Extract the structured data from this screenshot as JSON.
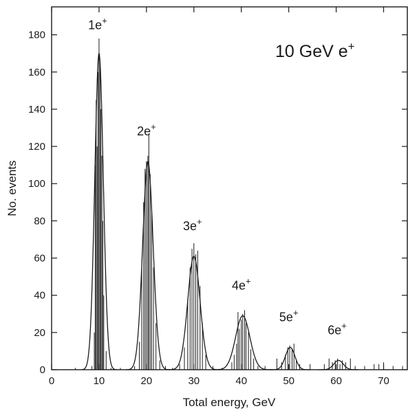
{
  "chart_data": {
    "type": "histogram",
    "title": "10 GeV e⁺",
    "title_parts": {
      "text": "10 GeV e",
      "sup": "+"
    },
    "xlabel": "Total energy, GeV",
    "ylabel": "No. events",
    "xlim": [
      0,
      75
    ],
    "ylim": [
      0,
      195
    ],
    "xticks": [
      0,
      10,
      20,
      30,
      40,
      50,
      60,
      70
    ],
    "yticks": [
      0,
      20,
      40,
      60,
      80,
      100,
      120,
      140,
      160,
      180
    ],
    "grid": false,
    "colors": {
      "ink": "#1a1a1a",
      "background": "#ffffff"
    },
    "peaks": [
      {
        "label": "1e",
        "sup": "+",
        "center": 10,
        "sigma": 0.9,
        "height": 170
      },
      {
        "label": "2e",
        "sup": "+",
        "center": 20.3,
        "sigma": 1.1,
        "height": 112
      },
      {
        "label": "3e",
        "sup": "+",
        "center": 30,
        "sigma": 1.3,
        "height": 61
      },
      {
        "label": "4e",
        "sup": "+",
        "center": 40.3,
        "sigma": 1.5,
        "height": 29
      },
      {
        "label": "5e",
        "sup": "+",
        "center": 50.3,
        "sigma": 1.0,
        "height": 12
      },
      {
        "label": "6e",
        "sup": "+",
        "center": 60.5,
        "sigma": 1.0,
        "height": 5
      }
    ],
    "histogram": [
      {
        "x": 5.0,
        "y": 1
      },
      {
        "x": 8.5,
        "y": 2
      },
      {
        "x": 9.0,
        "y": 20
      },
      {
        "x": 9.2,
        "y": 110
      },
      {
        "x": 9.4,
        "y": 145
      },
      {
        "x": 9.6,
        "y": 120
      },
      {
        "x": 9.8,
        "y": 160
      },
      {
        "x": 10.0,
        "y": 178
      },
      {
        "x": 10.2,
        "y": 165
      },
      {
        "x": 10.4,
        "y": 140
      },
      {
        "x": 10.6,
        "y": 115
      },
      {
        "x": 10.8,
        "y": 80
      },
      {
        "x": 11.0,
        "y": 40
      },
      {
        "x": 11.5,
        "y": 10
      },
      {
        "x": 12.5,
        "y": 1
      },
      {
        "x": 14.5,
        "y": 1
      },
      {
        "x": 17.5,
        "y": 2
      },
      {
        "x": 18.5,
        "y": 15
      },
      {
        "x": 19.0,
        "y": 55
      },
      {
        "x": 19.4,
        "y": 90
      },
      {
        "x": 19.7,
        "y": 108
      },
      {
        "x": 20.0,
        "y": 112
      },
      {
        "x": 20.3,
        "y": 115
      },
      {
        "x": 20.5,
        "y": 127
      },
      {
        "x": 20.8,
        "y": 105
      },
      {
        "x": 21.1,
        "y": 85
      },
      {
        "x": 21.5,
        "y": 55
      },
      {
        "x": 22.0,
        "y": 25
      },
      {
        "x": 22.8,
        "y": 5
      },
      {
        "x": 24.0,
        "y": 2
      },
      {
        "x": 25.5,
        "y": 1
      },
      {
        "x": 27.0,
        "y": 3
      },
      {
        "x": 28.0,
        "y": 12
      },
      {
        "x": 28.7,
        "y": 38
      },
      {
        "x": 29.2,
        "y": 55
      },
      {
        "x": 29.6,
        "y": 65
      },
      {
        "x": 30.0,
        "y": 68
      },
      {
        "x": 30.4,
        "y": 62
      },
      {
        "x": 30.8,
        "y": 64
      },
      {
        "x": 31.3,
        "y": 45
      },
      {
        "x": 31.8,
        "y": 25
      },
      {
        "x": 32.5,
        "y": 8
      },
      {
        "x": 34.0,
        "y": 2
      },
      {
        "x": 36.0,
        "y": 1
      },
      {
        "x": 38.0,
        "y": 4
      },
      {
        "x": 38.5,
        "y": 8
      },
      {
        "x": 39.0,
        "y": 14
      },
      {
        "x": 39.3,
        "y": 31
      },
      {
        "x": 39.6,
        "y": 22
      },
      {
        "x": 40.0,
        "y": 27
      },
      {
        "x": 40.3,
        "y": 30
      },
      {
        "x": 40.7,
        "y": 32
      },
      {
        "x": 41.0,
        "y": 25
      },
      {
        "x": 41.5,
        "y": 20
      },
      {
        "x": 42.0,
        "y": 11
      },
      {
        "x": 42.6,
        "y": 6
      },
      {
        "x": 43.5,
        "y": 2
      },
      {
        "x": 45.0,
        "y": 2
      },
      {
        "x": 47.5,
        "y": 6
      },
      {
        "x": 48.5,
        "y": 4
      },
      {
        "x": 49.3,
        "y": 8
      },
      {
        "x": 49.8,
        "y": 12
      },
      {
        "x": 50.2,
        "y": 13
      },
      {
        "x": 50.7,
        "y": 11
      },
      {
        "x": 51.1,
        "y": 14
      },
      {
        "x": 51.6,
        "y": 5
      },
      {
        "x": 52.3,
        "y": 3
      },
      {
        "x": 54.5,
        "y": 3
      },
      {
        "x": 57.5,
        "y": 3
      },
      {
        "x": 58.5,
        "y": 6
      },
      {
        "x": 59.2,
        "y": 4
      },
      {
        "x": 59.8,
        "y": 5
      },
      {
        "x": 60.3,
        "y": 6
      },
      {
        "x": 60.8,
        "y": 3
      },
      {
        "x": 61.3,
        "y": 5
      },
      {
        "x": 62.0,
        "y": 4
      },
      {
        "x": 63.0,
        "y": 6
      },
      {
        "x": 64.0,
        "y": 2
      },
      {
        "x": 66.0,
        "y": 2
      },
      {
        "x": 68.0,
        "y": 3
      },
      {
        "x": 69.0,
        "y": 3
      },
      {
        "x": 70.0,
        "y": 4
      },
      {
        "x": 72.0,
        "y": 2
      },
      {
        "x": 74.0,
        "y": 2
      }
    ]
  }
}
